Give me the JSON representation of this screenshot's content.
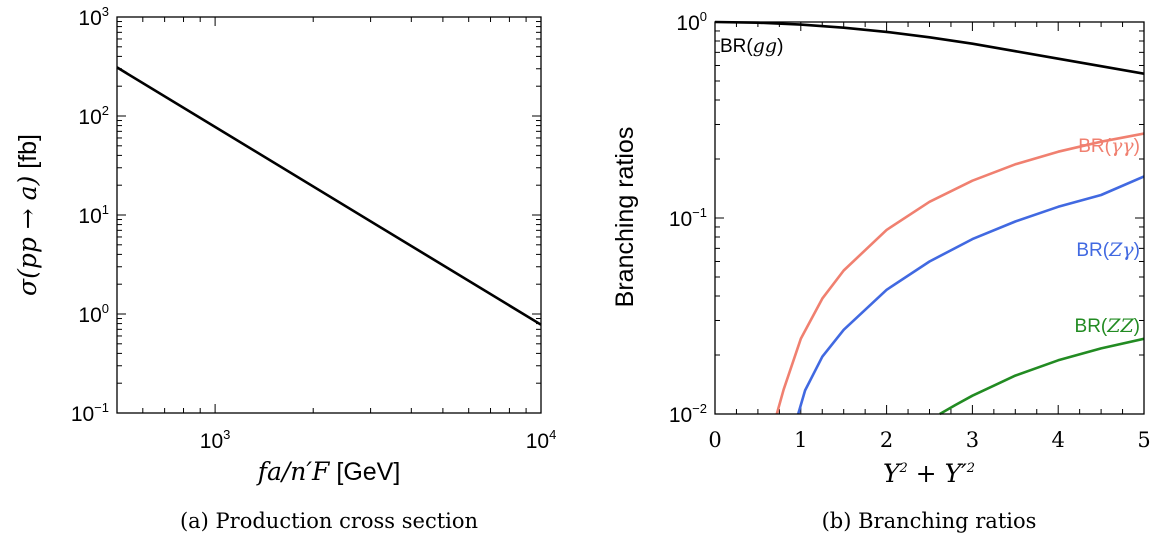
{
  "chart_data": [
    {
      "type": "line",
      "caption": "(a) Production cross section",
      "xlabel": "f_a/n'_F [GeV]",
      "xlabel_parts": {
        "math": "fa/n′F",
        "unit": " [GeV]"
      },
      "ylabel": "σ(pp → a) [fb]",
      "ylabel_parts": {
        "math": "σ(pp → a)",
        "unit": " [fb]"
      },
      "xscale": "log",
      "yscale": "log",
      "xlim": [
        500,
        10000
      ],
      "ylim": [
        0.1,
        1000
      ],
      "xticks": [
        {
          "base": "10",
          "exp": "3",
          "value": 1000
        },
        {
          "base": "10",
          "exp": "4",
          "value": 10000
        }
      ],
      "yticks": [
        {
          "base": "10",
          "exp": "−1",
          "value": 0.1
        },
        {
          "base": "10",
          "exp": "0",
          "value": 1
        },
        {
          "base": "10",
          "exp": "1",
          "value": 10
        },
        {
          "base": "10",
          "exp": "2",
          "value": 100
        },
        {
          "base": "10",
          "exp": "3",
          "value": 1000
        }
      ],
      "series": [
        {
          "color": "#000000",
          "x": [
            500,
            10000
          ],
          "y": [
            310,
            0.78
          ]
        }
      ]
    },
    {
      "type": "line",
      "caption": "(b) Branching ratios",
      "xlabel": "Y^2 + Y'^2",
      "ylabel": "Branching ratios",
      "xscale": "linear",
      "yscale": "log",
      "xlim": [
        0,
        5
      ],
      "ylim": [
        0.01,
        1
      ],
      "xticks": [
        {
          "label": "0",
          "value": 0
        },
        {
          "label": "1",
          "value": 1
        },
        {
          "label": "2",
          "value": 2
        },
        {
          "label": "3",
          "value": 3
        },
        {
          "label": "4",
          "value": 4
        },
        {
          "label": "5",
          "value": 5
        }
      ],
      "yticks": [
        {
          "base": "10",
          "exp": "−2",
          "value": 0.01
        },
        {
          "base": "10",
          "exp": "−1",
          "value": 0.1
        },
        {
          "base": "10",
          "exp": "0",
          "value": 1
        }
      ],
      "series": [
        {
          "name": "BR(gg)",
          "label_prefix": "BR(",
          "label_math": "gg",
          "color": "#000000",
          "x": [
            0,
            0.5,
            1,
            1.5,
            2,
            2.5,
            3,
            3.5,
            4,
            4.5,
            5
          ],
          "y": [
            1.0,
            0.992,
            0.97,
            0.935,
            0.89,
            0.835,
            0.775,
            0.71,
            0.65,
            0.595,
            0.545
          ]
        },
        {
          "name": "BR(γγ)",
          "label_prefix": "BR(",
          "label_math": "γγ",
          "color": "#f08070",
          "x": [
            0.72,
            0.8,
            1,
            1.25,
            1.5,
            2,
            2.5,
            3,
            3.5,
            4,
            4.5,
            5
          ],
          "y": [
            0.01,
            0.0133,
            0.0242,
            0.0388,
            0.054,
            0.087,
            0.121,
            0.155,
            0.188,
            0.218,
            0.245,
            0.27
          ]
        },
        {
          "name": "BR(Zγ)",
          "label_prefix": "BR(",
          "label_math": "Zγ",
          "color": "#4169e1",
          "x": [
            0.97,
            1.05,
            1.25,
            1.5,
            2,
            2.5,
            3,
            3.5,
            4,
            4.5,
            5
          ],
          "y": [
            0.01,
            0.0132,
            0.0196,
            0.0269,
            0.043,
            0.06,
            0.078,
            0.096,
            0.114,
            0.131,
            0.163
          ]
        },
        {
          "name": "BR(ZZ)",
          "label_prefix": "BR(",
          "label_math": "ZZ",
          "color": "#228b22",
          "x": [
            2.62,
            2.8,
            3,
            3.5,
            4,
            4.5,
            5
          ],
          "y": [
            0.01,
            0.0111,
            0.0124,
            0.0157,
            0.0188,
            0.0216,
            0.0242
          ]
        }
      ]
    }
  ]
}
